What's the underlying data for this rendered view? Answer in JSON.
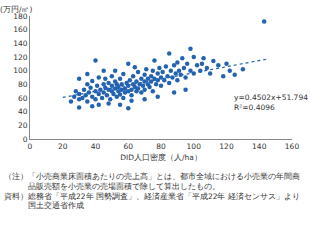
{
  "chart_data": {
    "type": "scatter",
    "y_label": "(万円/㎡)",
    "x_label": "DID人口密度（人/ha）",
    "color": "#2463b0",
    "marker": "circle",
    "xlim": [
      0,
      160
    ],
    "xticks": [
      0,
      20,
      40,
      60,
      80,
      100,
      120,
      140,
      160
    ],
    "ylim": [
      0,
      180
    ],
    "yticks": [
      0,
      20,
      40,
      60,
      80,
      100,
      120,
      140,
      160,
      180
    ],
    "grid": false,
    "x": [
      25,
      27,
      28,
      30,
      30,
      32,
      33,
      34,
      35,
      35,
      36,
      37,
      38,
      38,
      40,
      40,
      41,
      42,
      42,
      43,
      44,
      45,
      45,
      46,
      46,
      47,
      48,
      48,
      49,
      50,
      50,
      50,
      51,
      52,
      52,
      53,
      53,
      54,
      54,
      55,
      55,
      56,
      56,
      57,
      57,
      58,
      58,
      59,
      60,
      60,
      60,
      61,
      62,
      62,
      63,
      63,
      64,
      65,
      65,
      66,
      66,
      67,
      68,
      68,
      69,
      70,
      70,
      70,
      71,
      72,
      72,
      73,
      74,
      74,
      75,
      75,
      76,
      77,
      78,
      78,
      79,
      80,
      80,
      81,
      82,
      83,
      84,
      85,
      85,
      86,
      87,
      88,
      89,
      90,
      90,
      91,
      92,
      93,
      94,
      95,
      96,
      98,
      98,
      100,
      100,
      102,
      104,
      105,
      106,
      108,
      110,
      112,
      115,
      118,
      120,
      122,
      125,
      130,
      143,
      40,
      45,
      30,
      35,
      38,
      42,
      48,
      55,
      62,
      70,
      78,
      88,
      95,
      60,
      30,
      52,
      64,
      76
    ],
    "values": [
      55,
      62,
      70,
      58,
      66,
      60,
      72,
      64,
      55,
      80,
      68,
      75,
      62,
      85,
      70,
      58,
      78,
      66,
      90,
      72,
      60,
      80,
      68,
      75,
      88,
      64,
      72,
      82,
      58,
      70,
      78,
      92,
      66,
      74,
      84,
      62,
      80,
      70,
      76,
      88,
      65,
      72,
      80,
      60,
      95,
      74,
      68,
      82,
      70,
      78,
      110,
      86,
      72,
      64,
      80,
      92,
      76,
      70,
      84,
      98,
      74,
      80,
      68,
      88,
      78,
      84,
      94,
      72,
      102,
      80,
      88,
      76,
      92,
      84,
      100,
      70,
      88,
      80,
      96,
      86,
      104,
      90,
      78,
      98,
      86,
      106,
      92,
      125,
      82,
      100,
      90,
      108,
      96,
      86,
      112,
      100,
      94,
      118,
      104,
      90,
      110,
      132,
      100,
      96,
      120,
      108,
      100,
      110,
      118,
      104,
      96,
      114,
      108,
      92,
      110,
      100,
      94,
      102,
      172,
      115,
      100,
      88,
      95,
      48,
      50,
      52,
      50,
      56,
      58,
      62,
      68,
      72,
      45,
      46,
      100,
      105,
      115
    ],
    "trendline": {
      "x": [
        20,
        145
      ],
      "values": [
        60.8,
        117.07
      ],
      "line_style": "dotted",
      "color": "#2463b0"
    },
    "annotations": [
      "y=0.4502x+51.794",
      "R²=0.4096"
    ]
  },
  "notes": [
    {
      "label": "（注）",
      "text": "「小売商業床面積あたりの売上高」とは、都市全域における小売業の年間商品販売額を小売業の売場面積で除して算出したもの。"
    },
    {
      "label": "資料）",
      "text": "総務省「平成22年 国勢調査」、経済産業省「平成22年 経済センサス」より国土交通省作成"
    }
  ]
}
